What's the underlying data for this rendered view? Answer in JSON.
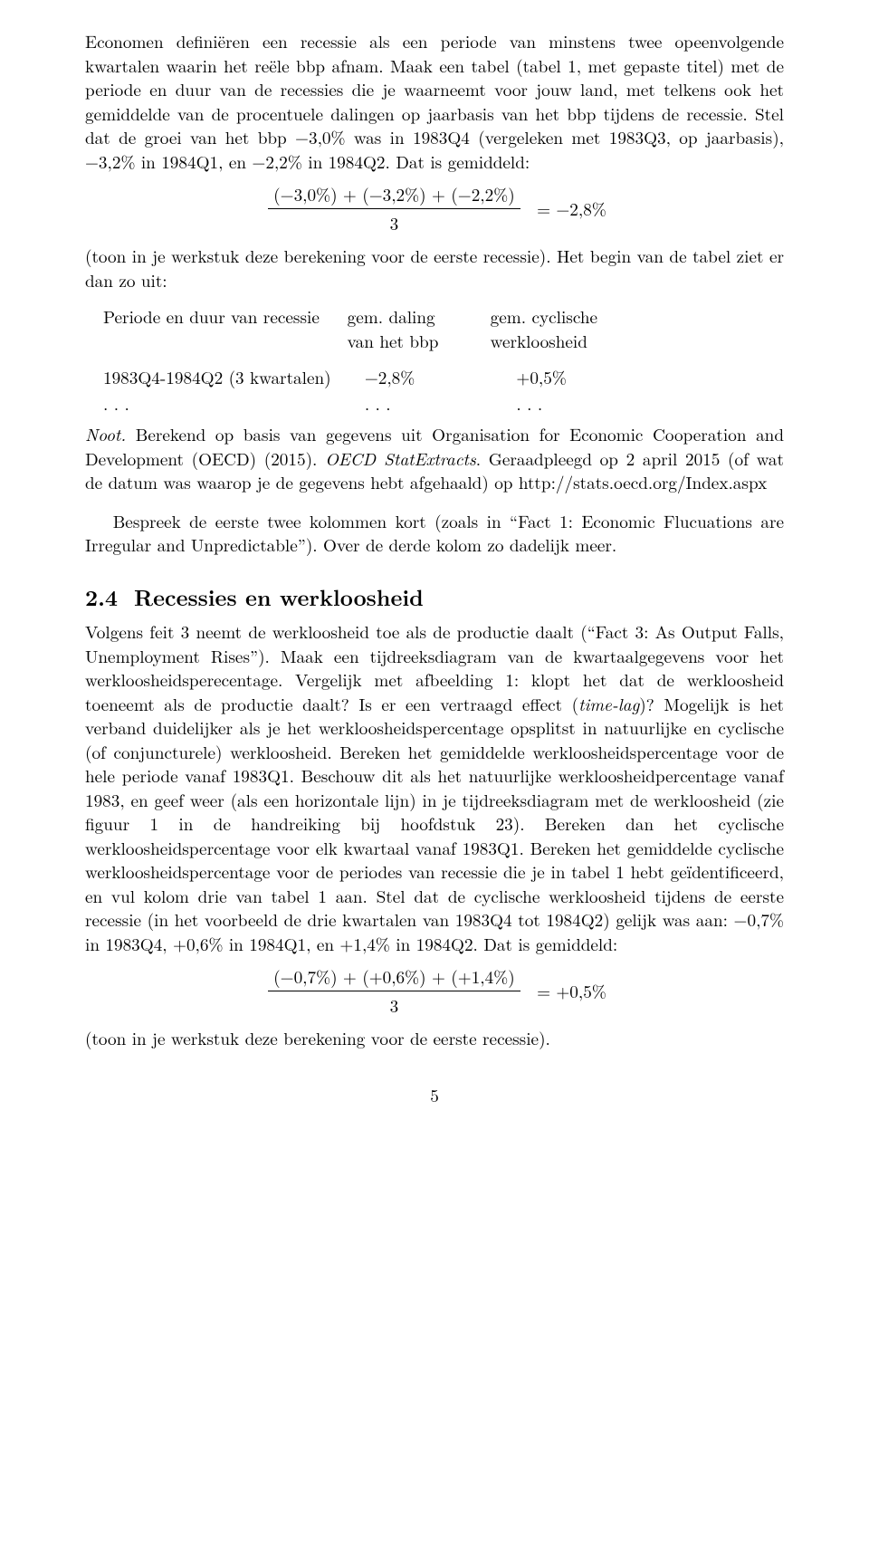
{
  "para1": "Economen definiëren een recessie als een periode van minstens twee opeenvolgende kwartalen waarin het reële bbp afnam. Maak een tabel (tabel 1, met gepaste titel) met de periode en duur van de recessies die je waarneemt voor jouw land, met telkens ook het gemiddelde van de procentuele dalingen op jaarbasis van het bbp tijdens de recessie. Stel dat de groei van het bbp −3,0% was in 1983Q4 (vergeleken met 1983Q3, op jaarbasis), −3,2% in 1984Q1, en −2,2% in 1984Q2. Dat is gemiddeld:",
  "formula1_num": "(−3,0%) + (−3,2%) + (−2,2%)",
  "formula1_den": "3",
  "formula1_rhs": "= −2,8%",
  "para2": "(toon in je werkstuk deze berekening voor de eerste recessie). Het begin van de tabel ziet er dan zo uit:",
  "table": {
    "h1": "Periode en duur van recessie",
    "h2a": "gem. daling",
    "h2b": "van het bbp",
    "h3a": "gem. cyclische",
    "h3b": "werkloosheid",
    "r1c1": "1983Q4-1984Q2 (3 kwartalen)",
    "r1c2": "−2,8%",
    "r1c3": "+0,5%",
    "dots": ". . ."
  },
  "note": {
    "lead": "Noot.",
    "body1": "  Berekend op basis van gegevens uit Organisation for Economic Cooperation and Development (OECD) (2015).  ",
    "ital": "OECD StatExtracts",
    "body2": ".  Geraadpleegd op 2 april 2015 (of wat de datum was waarop je de gegevens hebt afgehaald) op http://stats.oecd.org/Index.aspx"
  },
  "discuss": "Bespreek de eerste twee kolommen kort (zoals in “Fact 1: Economic Flucuations are Irregular and Unpredictable”). Over de derde kolom zo dadelijk meer.",
  "section": {
    "num": "2.4",
    "title": "Recessies en werkloosheid"
  },
  "para3": "Volgens feit 3 neemt de werkloosheid toe als de productie daalt (“Fact 3: As Output Falls, Unemployment Rises”). Maak een tijdreeksdiagram van de kwartaalgegevens voor het werkloosheidsperecentage. Vergelijk met afbeelding 1: klopt het dat de werkloosheid toeneemt als de productie daalt? Is er een vertraagd effect (",
  "para3_ital": "time-lag",
  "para3b": ")? Mogelijk is het verband duidelijker als je het werkloosheidspercentage opsplitst in natuurlijke en cyclische (of conjuncturele) werkloosheid. Bereken het gemiddelde werkloosheidspercentage voor de hele periode vanaf 1983Q1. Beschouw dit als het natuurlijke werkloosheidpercentage vanaf 1983, en geef weer (als een horizontale lijn) in je tijdreeksdiagram met de werkloosheid (zie figuur 1 in de handreiking bij hoofdstuk 23). Bereken dan het cyclische werkloosheidspercentage voor elk kwartaal vanaf 1983Q1. Bereken het gemiddelde cyclische werkloosheidspercentage voor de periodes van recessie die je in tabel 1 hebt geïdentificeerd, en vul kolom drie van tabel 1 aan. Stel dat de cyclische werkloosheid tijdens de eerste recessie (in het voorbeeld de drie kwartalen van 1983Q4 tot 1984Q2) gelijk was aan: −0,7% in 1983Q4, +0,6% in 1984Q1, en +1,4% in 1984Q2. Dat is gemiddeld:",
  "formula2_num": "(−0,7%) + (+0,6%) + (+1,4%)",
  "formula2_den": "3",
  "formula2_rhs": "= +0,5%",
  "para4": "(toon in je werkstuk deze berekening voor de eerste recessie).",
  "pagenum": "5"
}
